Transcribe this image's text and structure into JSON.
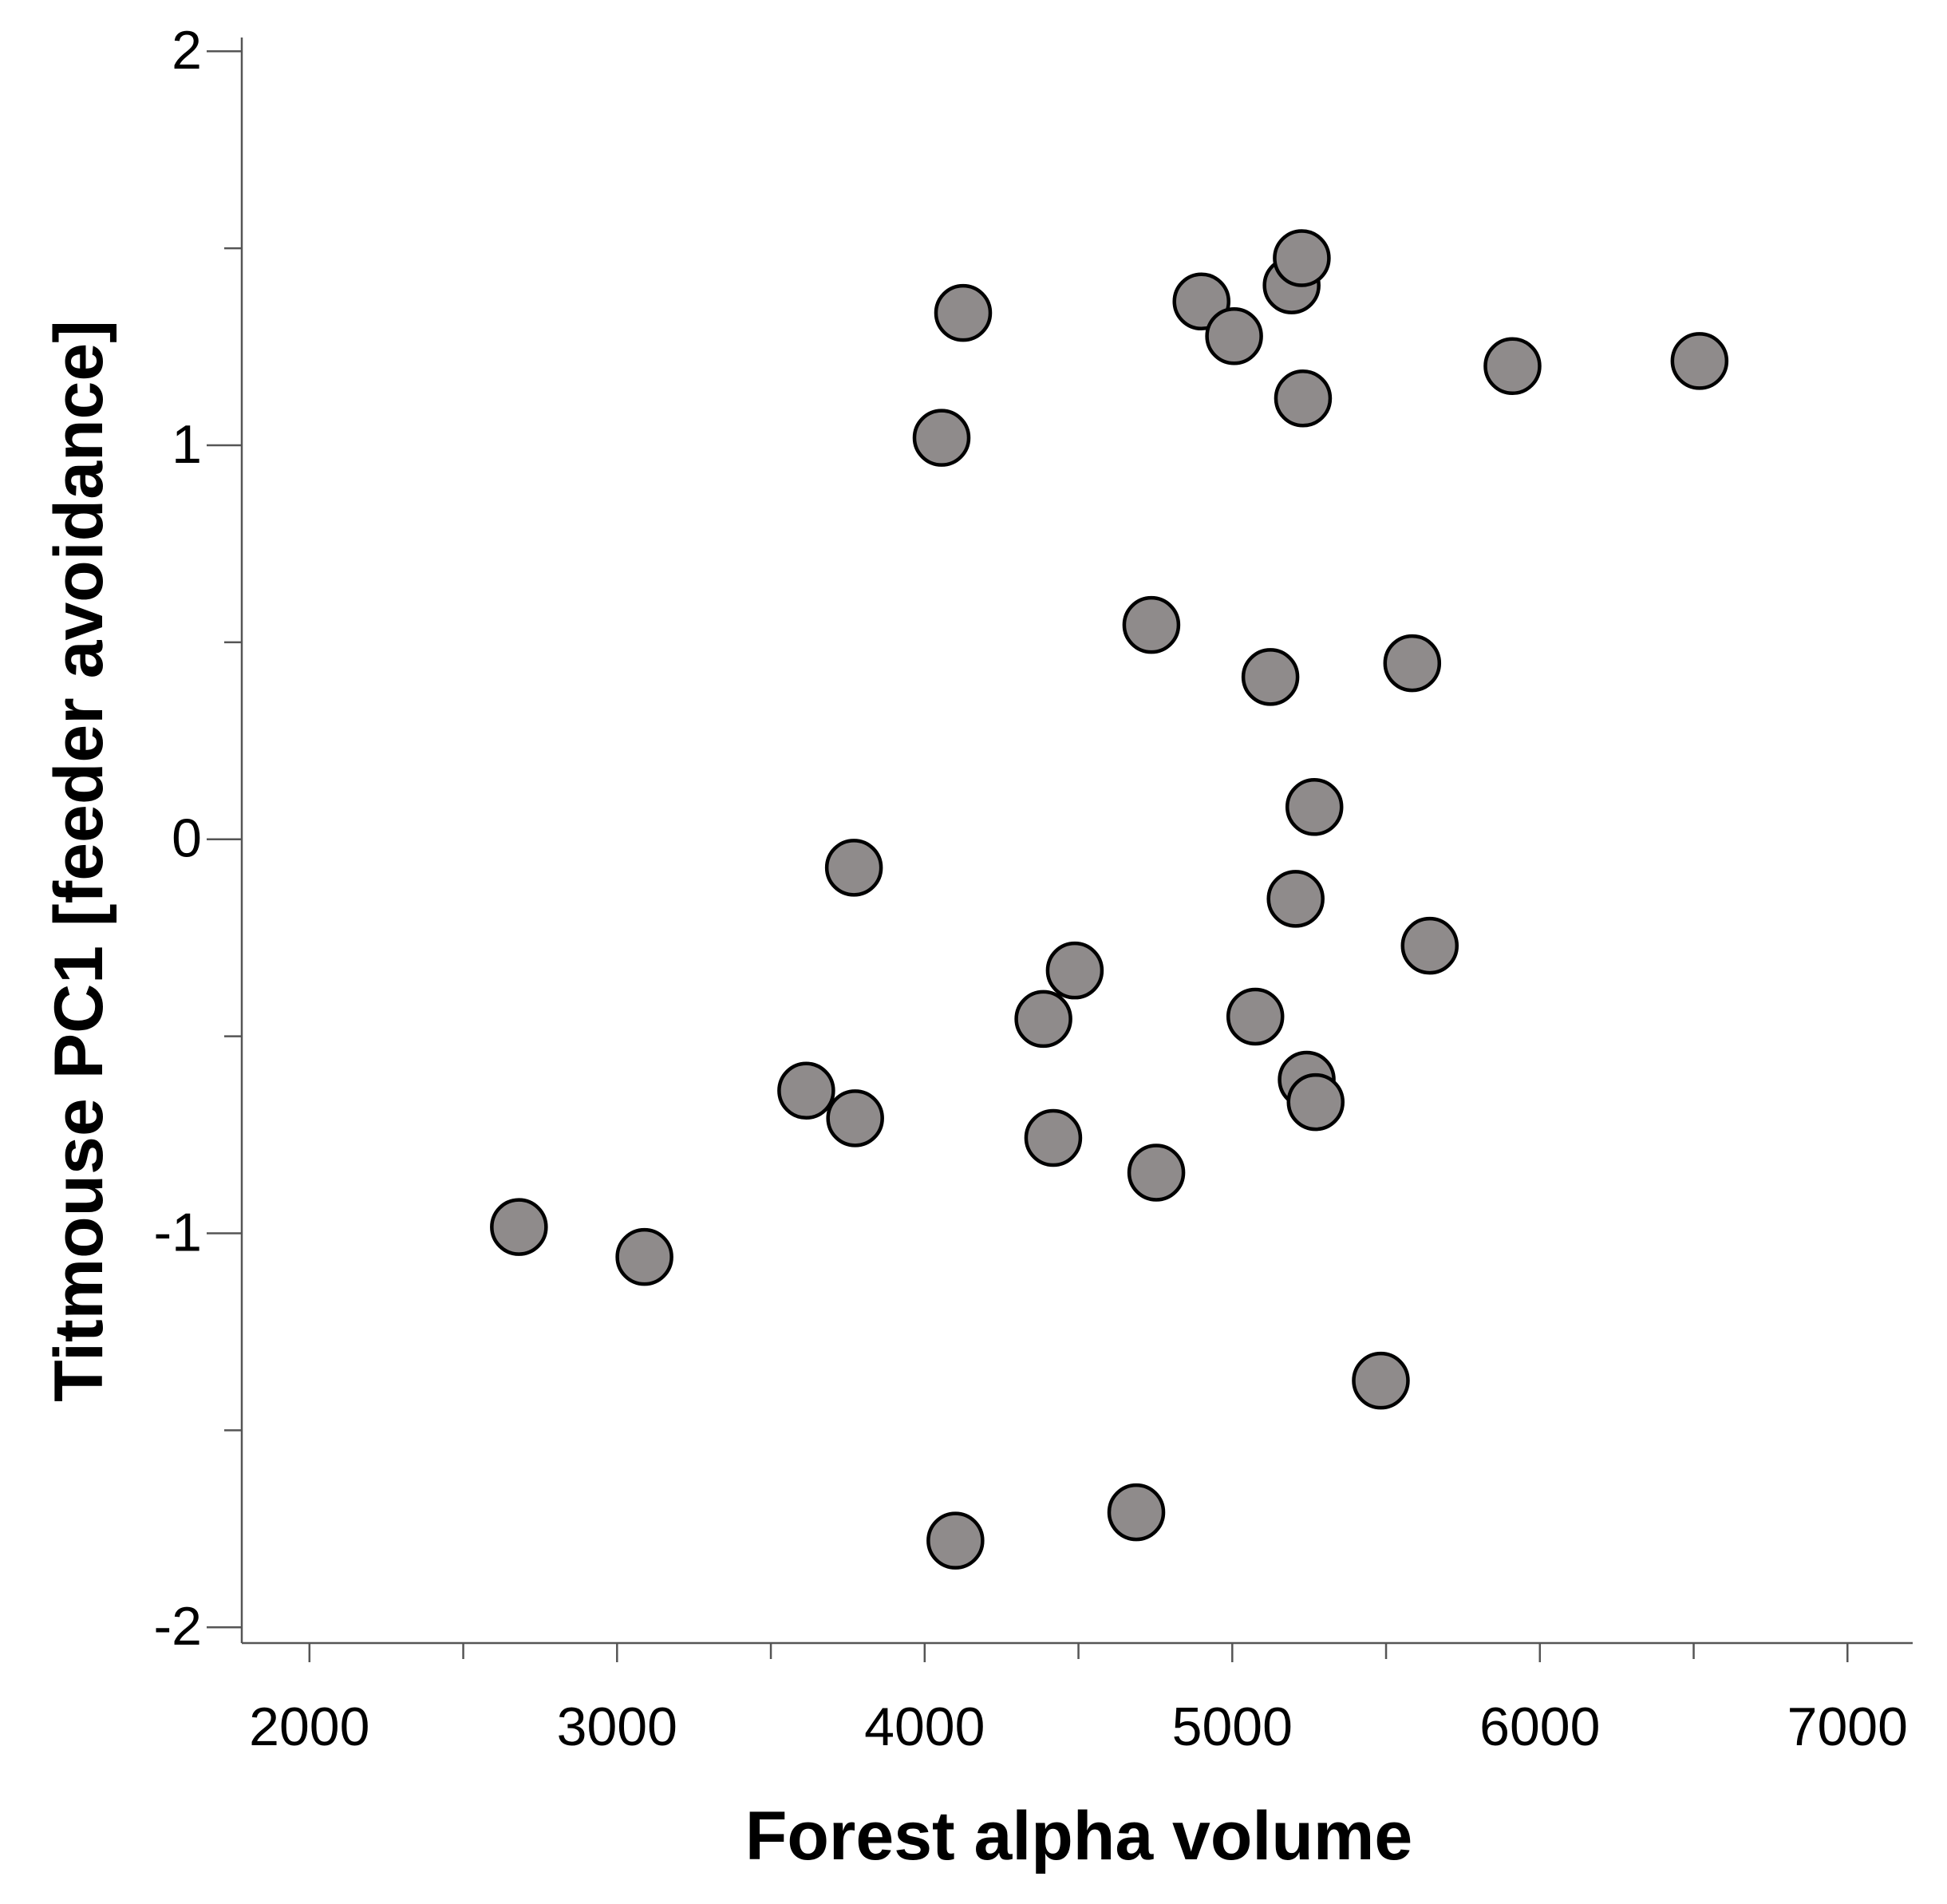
{
  "chart_data": {
    "type": "scatter",
    "x_label": "Forest alpha volume",
    "y_label": "Titmouse PC1 [feeder avoidance]",
    "xlim": [
      1780,
      7212
    ],
    "ylim": [
      -2.04,
      2.035
    ],
    "xticks": [
      2000,
      3000,
      4000,
      5000,
      6000,
      7000
    ],
    "yticks": [
      2,
      1,
      0,
      -1,
      -2
    ],
    "xminor": [
      2500,
      3500,
      4500,
      5500,
      6500
    ],
    "yminor": [
      1.5,
      0.5,
      -0.5,
      -1.5
    ],
    "color": "#8f8b8b",
    "x": [
      4125,
      4055,
      4900,
      5006,
      5193,
      5226,
      5230,
      5911,
      6519,
      4737,
      5124,
      5585,
      5267,
      3770,
      5206,
      5642,
      4488,
      4386,
      5075,
      3615,
      3774,
      5242,
      5271,
      4418,
      4753,
      2681,
      3089,
      5483,
      4688,
      4100
    ],
    "y": [
      1.336,
      1.019,
      1.365,
      1.277,
      1.406,
      1.475,
      1.119,
      1.201,
      1.214,
      0.544,
      0.412,
      0.447,
      0.082,
      -0.072,
      -0.151,
      -0.27,
      -0.333,
      -0.456,
      -0.45,
      -0.638,
      -0.708,
      -0.61,
      -0.667,
      -0.758,
      -0.846,
      -0.984,
      -1.06,
      -1.374,
      -1.708,
      -1.78
    ]
  }
}
